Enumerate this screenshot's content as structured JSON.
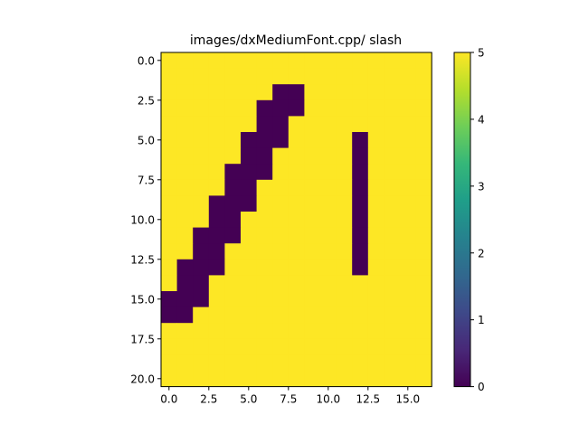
{
  "chart_data": {
    "type": "heatmap",
    "title": "images/dxMediumFont.cpp/ slash",
    "xlabel": "",
    "ylabel": "",
    "rows": 21,
    "cols": 17,
    "value_range": [
      0,
      5
    ],
    "colormap": "viridis",
    "low_color": "#440154",
    "high_color": "#fde725",
    "default_value": 5,
    "marked_value": 0,
    "x_ticks": [
      0,
      2.5,
      5,
      7.5,
      10,
      12.5,
      15
    ],
    "x_tick_labels": [
      "0.0",
      "2.5",
      "5.0",
      "7.5",
      "10.0",
      "12.5",
      "15.0"
    ],
    "y_ticks": [
      0,
      2.5,
      5,
      7.5,
      10,
      12.5,
      15,
      17.5,
      20
    ],
    "y_tick_labels": [
      "0.0",
      "2.5",
      "5.0",
      "7.5",
      "10.0",
      "12.5",
      "15.0",
      "17.5",
      "20.0"
    ],
    "colorbar_ticks": [
      0,
      1,
      2,
      3,
      4,
      5
    ],
    "colorbar_tick_labels": [
      "0",
      "1",
      "2",
      "3",
      "4",
      "5"
    ],
    "marked_cells": [
      {
        "row": 2,
        "cols": [
          7,
          8
        ]
      },
      {
        "row": 3,
        "cols": [
          6,
          7,
          8
        ]
      },
      {
        "row": 4,
        "cols": [
          6,
          7
        ]
      },
      {
        "row": 5,
        "cols": [
          5,
          6,
          7,
          12
        ]
      },
      {
        "row": 6,
        "cols": [
          5,
          6,
          12
        ]
      },
      {
        "row": 7,
        "cols": [
          4,
          5,
          6,
          12
        ]
      },
      {
        "row": 8,
        "cols": [
          4,
          5,
          12
        ]
      },
      {
        "row": 9,
        "cols": [
          3,
          4,
          5,
          12
        ]
      },
      {
        "row": 10,
        "cols": [
          3,
          4,
          12
        ]
      },
      {
        "row": 11,
        "cols": [
          2,
          3,
          4,
          12
        ]
      },
      {
        "row": 12,
        "cols": [
          2,
          3,
          12
        ]
      },
      {
        "row": 13,
        "cols": [
          1,
          2,
          3,
          12
        ]
      },
      {
        "row": 14,
        "cols": [
          1,
          2
        ]
      },
      {
        "row": 15,
        "cols": [
          0,
          1,
          2
        ]
      },
      {
        "row": 16,
        "cols": [
          0,
          1
        ]
      }
    ]
  }
}
